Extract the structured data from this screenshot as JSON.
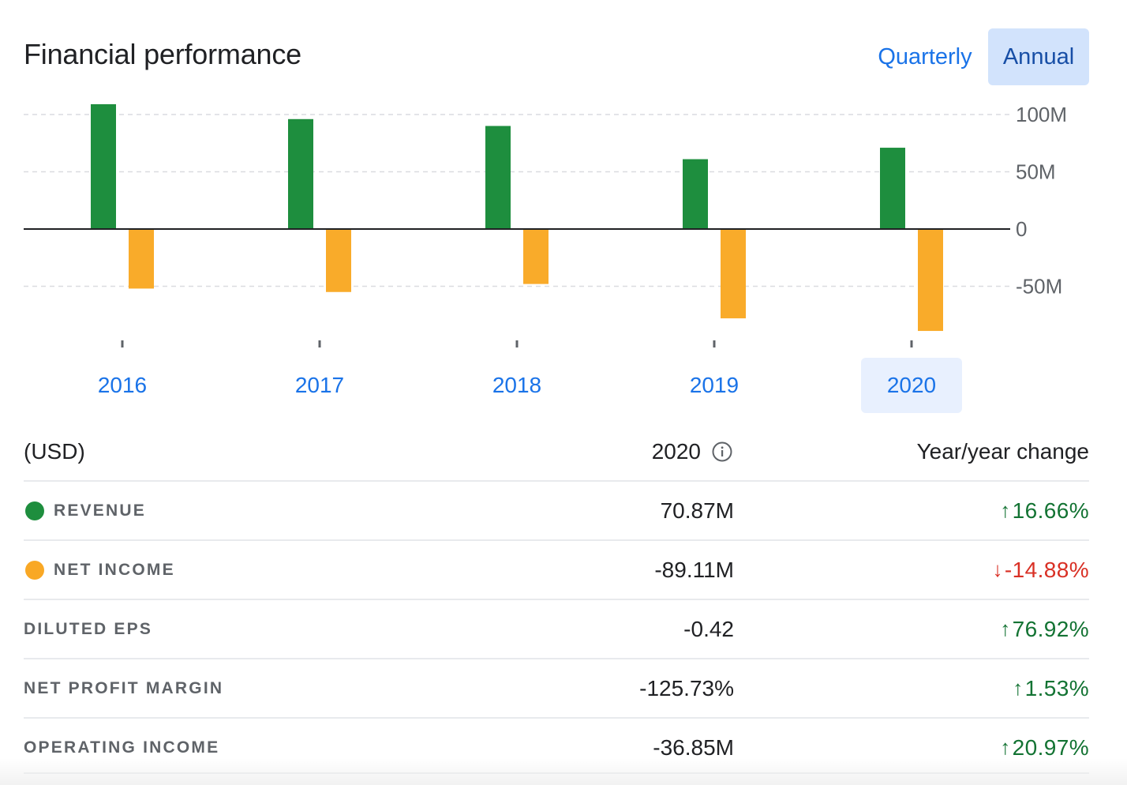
{
  "header": {
    "title": "Financial performance",
    "toggle_quarterly": "Quarterly",
    "toggle_annual": "Annual"
  },
  "chart_data": {
    "type": "bar",
    "categories": [
      "2016",
      "2017",
      "2018",
      "2019",
      "2020"
    ],
    "series": [
      {
        "name": "Revenue",
        "color": "#1e8e3e",
        "values": [
          109,
          96,
          90,
          61,
          71
        ]
      },
      {
        "name": "Net income",
        "color": "#f9ab2a",
        "values": [
          -52,
          -55,
          -48,
          -78,
          -89
        ]
      }
    ],
    "y_ticks": [
      {
        "value": 100,
        "label": "100M"
      },
      {
        "value": 50,
        "label": "50M"
      },
      {
        "value": 0,
        "label": "0"
      },
      {
        "value": -50,
        "label": "-50M"
      }
    ],
    "ylim": [
      -95,
      115
    ],
    "grid": true,
    "selected_category": "2020"
  },
  "table": {
    "col_label": "(USD)",
    "col_year": "2020",
    "col_change": "Year/year change",
    "rows": [
      {
        "label": "REVENUE",
        "dot_color": "#1e8e3e",
        "value": "70.87M",
        "arrow": "↑",
        "change": "16.66%",
        "dir": "up"
      },
      {
        "label": "NET INCOME",
        "dot_color": "#f9a825",
        "value": "-89.11M",
        "arrow": "↓",
        "change": "-14.88%",
        "dir": "down"
      },
      {
        "label": "DILUTED EPS",
        "value": "-0.42",
        "arrow": "↑",
        "change": "76.92%",
        "dir": "up"
      },
      {
        "label": "NET PROFIT MARGIN",
        "value": "-125.73%",
        "arrow": "↑",
        "change": "1.53%",
        "dir": "up"
      },
      {
        "label": "OPERATING INCOME",
        "value": "-36.85M",
        "arrow": "↑",
        "change": "20.97%",
        "dir": "up"
      }
    ]
  }
}
